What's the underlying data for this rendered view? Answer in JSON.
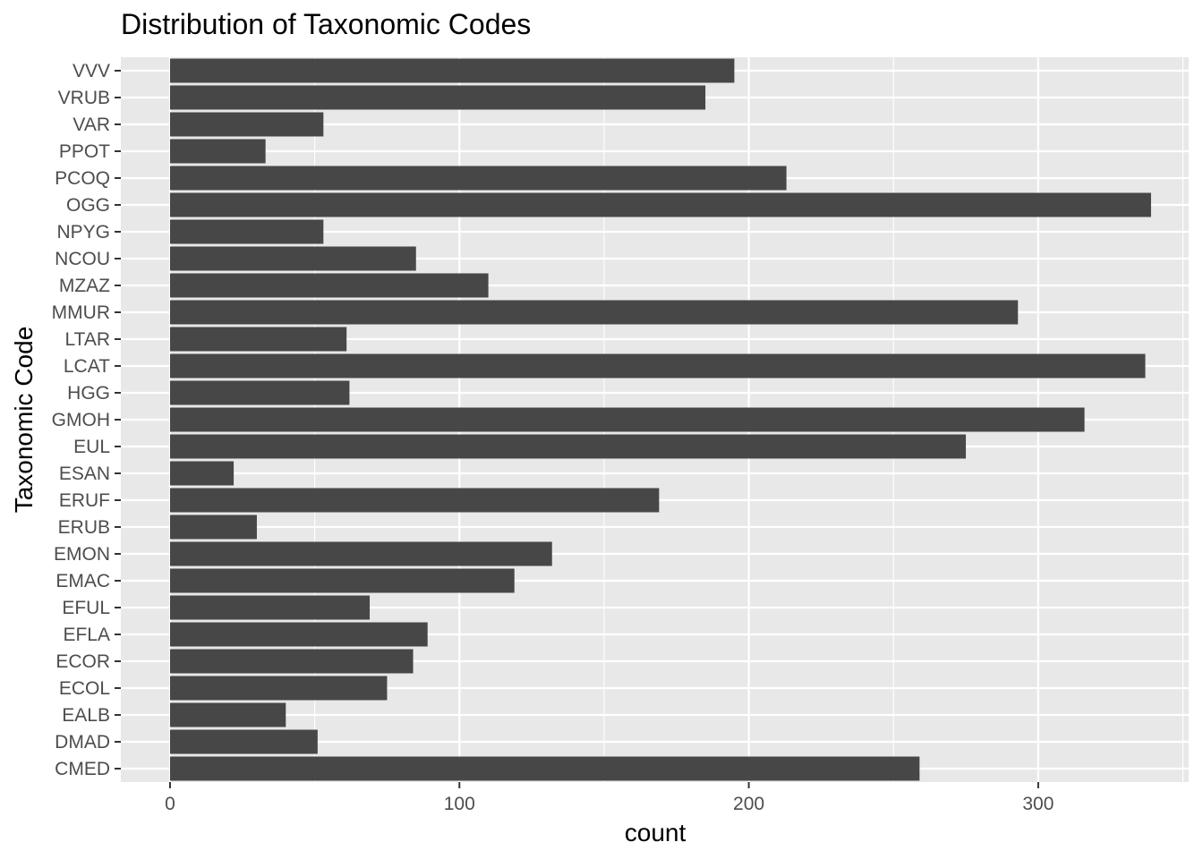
{
  "chart_data": {
    "type": "bar",
    "orientation": "horizontal",
    "title": "Distribution of Taxonomic Codes",
    "xlabel": "count",
    "ylabel": "Taxonomic Code",
    "categories": [
      "CMED",
      "DMAD",
      "EALB",
      "ECOL",
      "ECOR",
      "EFLA",
      "EFUL",
      "EMAC",
      "EMON",
      "ERUB",
      "ERUF",
      "ESAN",
      "EUL",
      "GMOH",
      "HGG",
      "LCAT",
      "LTAR",
      "MMUR",
      "MZAZ",
      "NCOU",
      "NPYG",
      "OGG",
      "PCOQ",
      "PPOT",
      "VAR",
      "VRUB",
      "VVV"
    ],
    "values": [
      259,
      51,
      40,
      75,
      84,
      89,
      69,
      119,
      132,
      30,
      169,
      22,
      275,
      316,
      62,
      337,
      61,
      293,
      110,
      85,
      53,
      339,
      213,
      33,
      53,
      185,
      195
    ],
    "xlim": [
      -17,
      352
    ],
    "xticks": [
      0,
      100,
      200,
      300
    ],
    "xtick_labels": [
      "0",
      "100",
      "200",
      "300"
    ],
    "grid": true,
    "colors": {
      "bar": "#474747",
      "panel": "#e8e8e8",
      "grid": "#ffffff"
    }
  }
}
